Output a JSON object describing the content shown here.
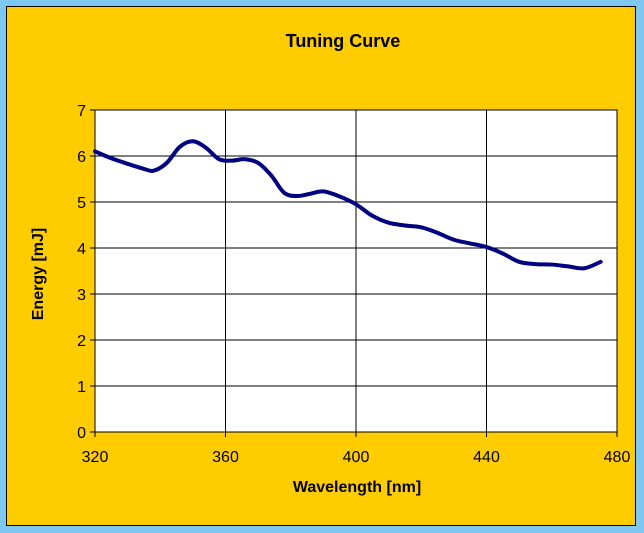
{
  "chart_data": {
    "type": "line",
    "title": "Tuning Curve",
    "xlabel": "Wavelength [nm]",
    "ylabel": "Energy [mJ]",
    "xlim": [
      320,
      480
    ],
    "ylim": [
      0,
      7
    ],
    "xticks": [
      320,
      360,
      400,
      440,
      480
    ],
    "yticks": [
      0,
      1,
      2,
      3,
      4,
      5,
      6,
      7
    ],
    "grid": true,
    "legend": "none",
    "colors": {
      "background": "#7ec8f2",
      "panel": "#ffcc00",
      "plot_area": "#ffffff",
      "line": "#000080"
    },
    "series": [
      {
        "x": [
          320,
          325,
          330,
          335,
          338,
          342,
          346,
          350,
          354,
          358,
          362,
          366,
          370,
          374,
          378,
          382,
          386,
          390,
          395,
          400,
          405,
          410,
          415,
          420,
          425,
          430,
          435,
          440,
          445,
          450,
          455,
          460,
          465,
          470,
          475
        ],
        "y": [
          6.1,
          5.95,
          5.83,
          5.72,
          5.68,
          5.85,
          6.2,
          6.32,
          6.18,
          5.93,
          5.9,
          5.93,
          5.85,
          5.58,
          5.2,
          5.13,
          5.18,
          5.23,
          5.12,
          4.95,
          4.7,
          4.55,
          4.49,
          4.45,
          4.33,
          4.18,
          4.1,
          4.02,
          3.88,
          3.7,
          3.65,
          3.64,
          3.6,
          3.56,
          3.7
        ]
      }
    ]
  }
}
